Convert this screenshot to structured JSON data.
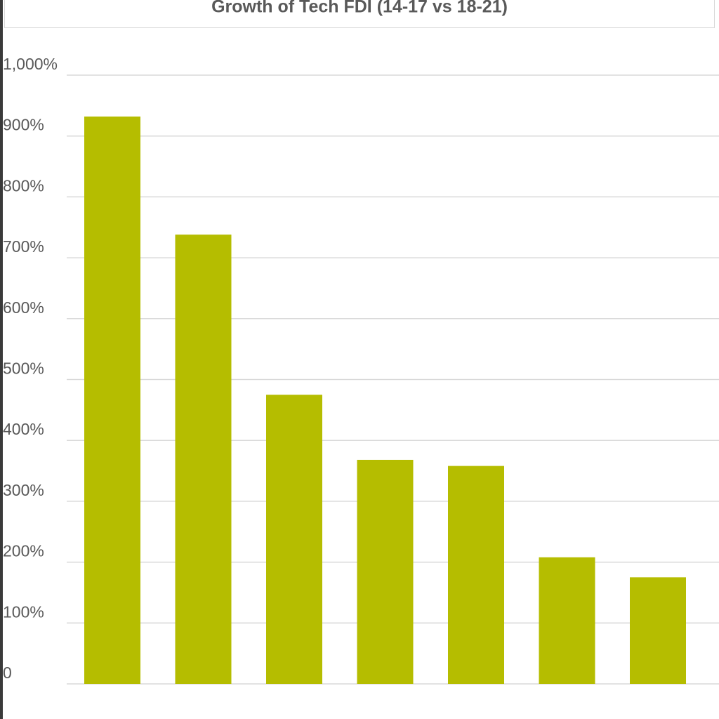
{
  "chart_data": {
    "type": "bar",
    "title": "Growth of Tech FDI (14-17 vs 18-21)",
    "xlabel": "",
    "ylabel": "",
    "categories": [
      "",
      "",
      "",
      "",
      "",
      "",
      ""
    ],
    "values": [
      932,
      738,
      475,
      368,
      358,
      208,
      175
    ],
    "ylim": [
      0,
      1000
    ],
    "yticks": [
      {
        "value": 0,
        "label": "0"
      },
      {
        "value": 100,
        "label": "100%"
      },
      {
        "value": 200,
        "label": "200%"
      },
      {
        "value": 300,
        "label": "300%"
      },
      {
        "value": 400,
        "label": "400%"
      },
      {
        "value": 500,
        "label": "500%"
      },
      {
        "value": 600,
        "label": "600%"
      },
      {
        "value": 700,
        "label": "700%"
      },
      {
        "value": 800,
        "label": "800%"
      },
      {
        "value": 900,
        "label": "900%"
      },
      {
        "value": 1000,
        "label": "1,000%"
      }
    ],
    "grid": true,
    "legend": "none",
    "colors": {
      "bar": "#b5bd00",
      "grid": "#d9d9d9",
      "text": "#595959"
    }
  }
}
